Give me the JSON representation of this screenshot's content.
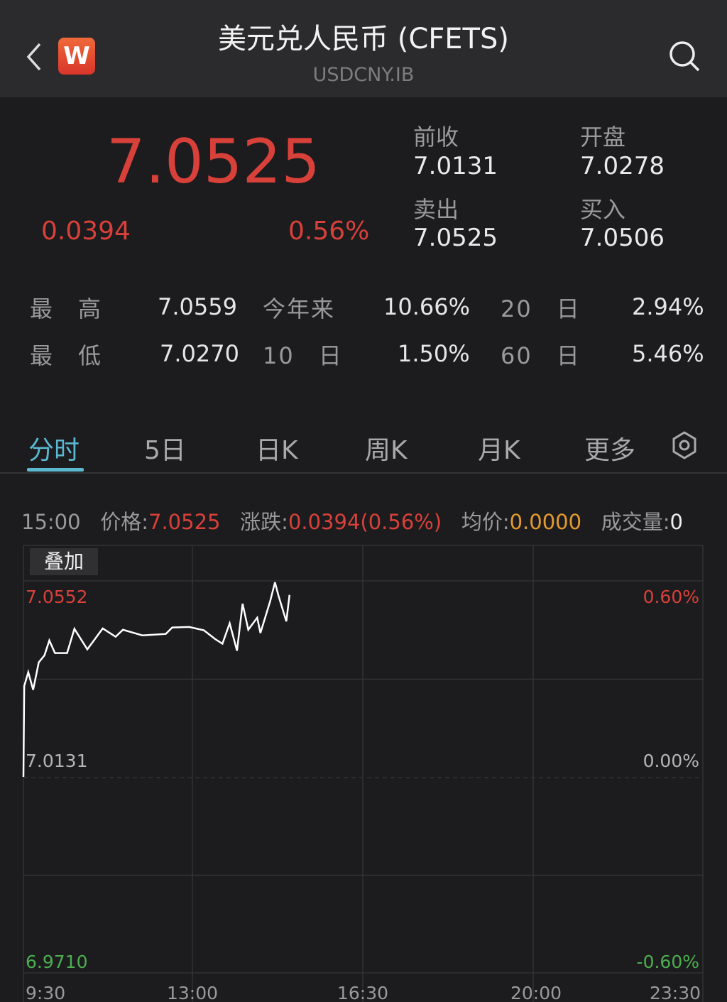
{
  "header": {
    "title": "美元兑人民币 (CFETS)",
    "subtitle": "USDCNY.IB",
    "logo_text": "W",
    "back_icon": "chevron-left-icon",
    "search_icon": "search-icon"
  },
  "quote": {
    "price": "7.0525",
    "change": "0.0394",
    "change_pct": "0.56%",
    "prev_close_label": "前收",
    "prev_close": "7.0131",
    "open_label": "开盘",
    "open": "7.0278",
    "ask_label": "卖出",
    "ask": "7.0525",
    "bid_label": "买入",
    "bid": "7.0506"
  },
  "stats": [
    {
      "label": "最　高",
      "value": "7.0559"
    },
    {
      "label": "今年来",
      "value": "10.66%"
    },
    {
      "label": "20　日",
      "value": "2.94%"
    },
    {
      "label": "最　低",
      "value": "7.0270"
    },
    {
      "label": "10　日",
      "value": "1.50%"
    },
    {
      "label": "60　日",
      "value": "5.46%"
    }
  ],
  "tabs": [
    "分时",
    "5日",
    "日K",
    "周K",
    "月K",
    "更多"
  ],
  "active_tab": "分时",
  "info": {
    "time": "15:00",
    "price_label": "价格:",
    "price": "7.0525",
    "chg_label": "涨跌:",
    "chg": "0.0394(0.56%)",
    "avg_label": "均价:",
    "avg": "0.0000",
    "vol_label": "成交量:",
    "vol": "0"
  },
  "overlay_button": "叠加",
  "colors": {
    "up": "#d8403a",
    "down": "#4cae4f",
    "avg": "#e39a2e",
    "accent": "#5ab8d0",
    "line": "#ffffff"
  },
  "chart_data": {
    "type": "line",
    "y_labels": {
      "top": "7.0552",
      "mid": "7.0131",
      "bottom": "6.9710"
    },
    "pct_labels": {
      "top": "0.60%",
      "mid": "0.00%",
      "bottom": "-0.60%"
    },
    "ylim": [
      6.971,
      7.0552
    ],
    "x_ticks": [
      "9:30",
      "13:00",
      "16:30",
      "20:00",
      "23:30"
    ],
    "xlim": [
      "9:30",
      "23:30"
    ],
    "grid": true,
    "series": [
      {
        "x": [
          "9:30",
          "9:31",
          "9:36",
          "9:42",
          "9:49",
          "9:56",
          "10:02",
          "10:09",
          "10:24",
          "10:33",
          "10:49",
          "11:08",
          "11:24",
          "11:33",
          "11:57",
          "12:26",
          "12:34",
          "12:55",
          "13:13",
          "13:27",
          "13:36",
          "13:45",
          "13:54",
          "14:01",
          "14:08",
          "14:19",
          "14:23",
          "14:35",
          "14:41",
          "14:45",
          "14:55",
          "14:59"
        ],
        "y": [
          7.0131,
          7.0326,
          7.0356,
          7.0318,
          7.0377,
          7.0392,
          7.0424,
          7.0397,
          7.0397,
          7.0449,
          7.0405,
          7.045,
          7.0432,
          7.0447,
          7.0435,
          7.0438,
          7.0452,
          7.0453,
          7.0446,
          7.0427,
          7.0417,
          7.0461,
          7.0402,
          7.0503,
          7.0447,
          7.0473,
          7.044,
          7.0508,
          7.0549,
          7.0522,
          7.0465,
          7.0522
        ]
      }
    ]
  }
}
